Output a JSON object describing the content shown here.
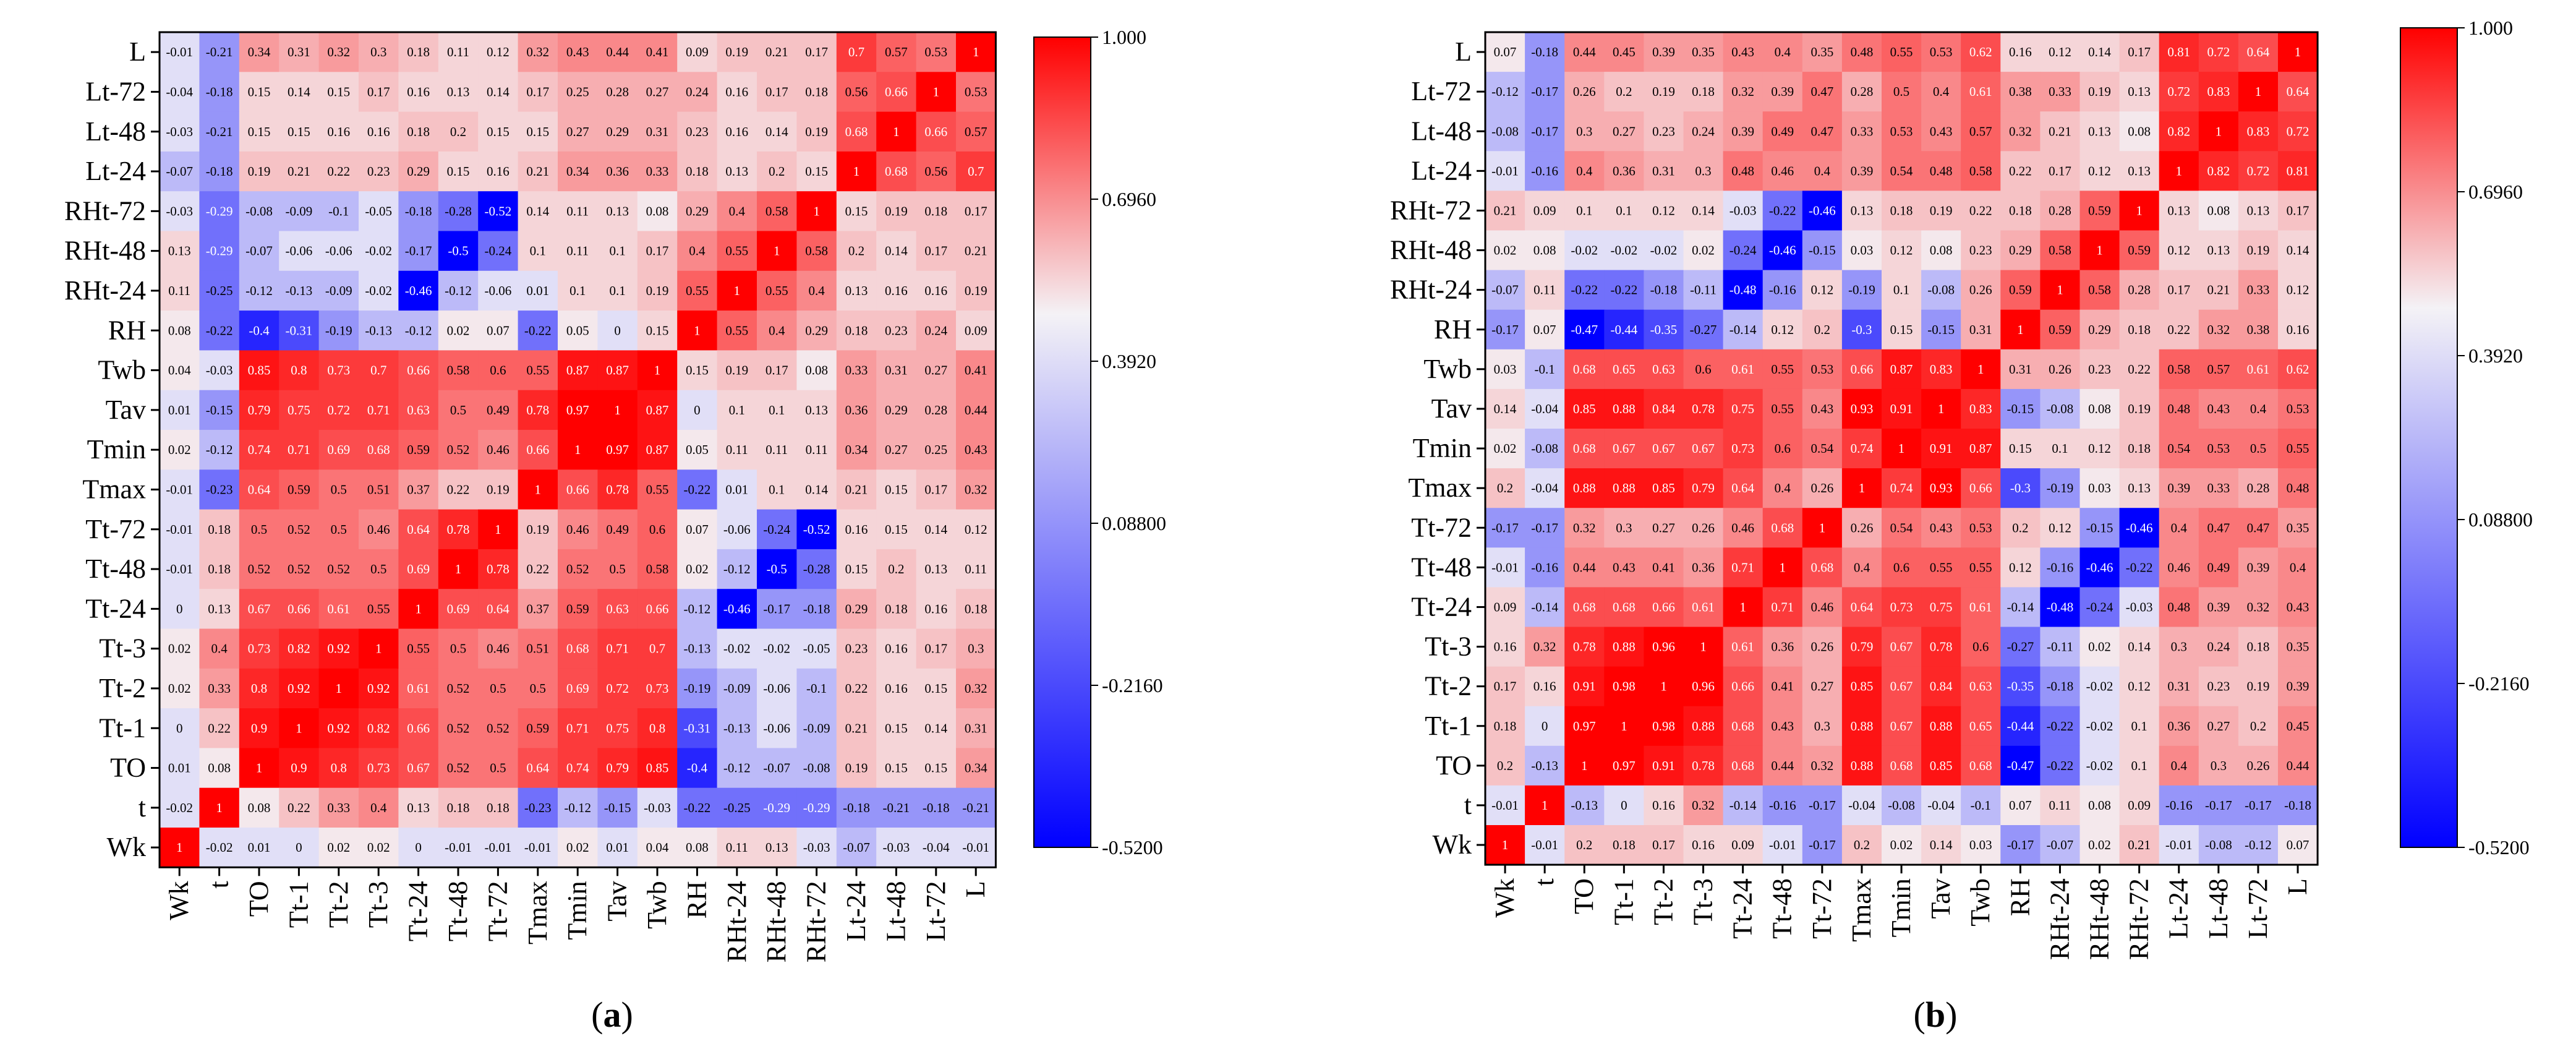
{
  "figure": {
    "colorbar_ticks": [
      "1.000",
      "0.6960",
      "0.3920",
      "0.08800",
      "-0.2160",
      "-0.5200"
    ],
    "color_min": -0.52,
    "color_max": 1.0,
    "colors": {
      "negative": "#0000ff",
      "middle": "#f4f2f6",
      "positive": "#ff0000"
    }
  },
  "chart_data": [
    {
      "type": "heatmap",
      "panel_label": "(a)",
      "variables": [
        "Wk",
        "t",
        "TO",
        "Tt-1",
        "Tt-2",
        "Tt-3",
        "Tt-24",
        "Tt-48",
        "Tt-72",
        "Tmax",
        "Tmin",
        "Tav",
        "Twb",
        "RH",
        "RHt-24",
        "RHt-48",
        "RHt-72",
        "Lt-24",
        "Lt-48",
        "Lt-72",
        "L"
      ],
      "rows": [
        "L",
        "Lt-72",
        "Lt-48",
        "Lt-24",
        "RHt-72",
        "RHt-48",
        "RHt-24",
        "RH",
        "Twb",
        "Tav",
        "Tmin",
        "Tmax",
        "Tt-72",
        "Tt-48",
        "Tt-24",
        "Tt-3",
        "Tt-2",
        "Tt-1",
        "TO",
        "t",
        "Wk"
      ],
      "columns": [
        "Wk",
        "t",
        "TO",
        "Tt-1",
        "Tt-2",
        "Tt-3",
        "Tt-24",
        "Tt-48",
        "Tt-72",
        "Tmax",
        "Tmin",
        "Tav",
        "Twb",
        "RH",
        "RHt-24",
        "RHt-48",
        "RHt-72",
        "Lt-24",
        "Lt-48",
        "Lt-72",
        "L"
      ],
      "values": [
        [
          -0.01,
          -0.21,
          0.34,
          0.31,
          0.32,
          0.3,
          0.18,
          0.11,
          0.12,
          0.32,
          0.43,
          0.44,
          0.41,
          0.09,
          0.19,
          0.21,
          0.17,
          0.7,
          0.57,
          0.53,
          1
        ],
        [
          -0.04,
          -0.18,
          0.15,
          0.14,
          0.15,
          0.17,
          0.16,
          0.13,
          0.14,
          0.17,
          0.25,
          0.28,
          0.27,
          0.24,
          0.16,
          0.17,
          0.18,
          0.56,
          0.66,
          1,
          0.53
        ],
        [
          -0.03,
          -0.21,
          0.15,
          0.15,
          0.16,
          0.16,
          0.18,
          0.2,
          0.15,
          0.15,
          0.27,
          0.29,
          0.31,
          0.23,
          0.16,
          0.14,
          0.19,
          0.68,
          1,
          0.66,
          0.57
        ],
        [
          -0.07,
          -0.18,
          0.19,
          0.21,
          0.22,
          0.23,
          0.29,
          0.15,
          0.16,
          0.21,
          0.34,
          0.36,
          0.33,
          0.18,
          0.13,
          0.2,
          0.15,
          1,
          0.68,
          0.56,
          0.7
        ],
        [
          -0.03,
          -0.29,
          -0.08,
          -0.09,
          -0.1,
          -0.05,
          -0.18,
          -0.28,
          -0.52,
          0.14,
          0.11,
          0.13,
          0.08,
          0.29,
          0.4,
          0.58,
          1,
          0.15,
          0.19,
          0.18,
          0.17
        ],
        [
          0.13,
          -0.29,
          -0.07,
          -0.06,
          -0.06,
          -0.02,
          -0.17,
          -0.5,
          -0.24,
          0.1,
          0.11,
          0.1,
          0.17,
          0.4,
          0.55,
          1,
          0.58,
          0.2,
          0.14,
          0.17,
          0.21
        ],
        [
          0.11,
          -0.25,
          -0.12,
          -0.13,
          -0.09,
          -0.02,
          -0.46,
          -0.12,
          -0.06,
          0.01,
          0.1,
          0.1,
          0.19,
          0.55,
          1,
          0.55,
          0.4,
          0.13,
          0.16,
          0.16,
          0.19
        ],
        [
          0.08,
          -0.22,
          -0.4,
          -0.31,
          -0.19,
          -0.13,
          -0.12,
          0.02,
          0.07,
          -0.22,
          0.05,
          0,
          0.15,
          1,
          0.55,
          0.4,
          0.29,
          0.18,
          0.23,
          0.24,
          0.09
        ],
        [
          0.04,
          -0.03,
          0.85,
          0.8,
          0.73,
          0.7,
          0.66,
          0.58,
          0.6,
          0.55,
          0.87,
          0.87,
          1,
          0.15,
          0.19,
          0.17,
          0.08,
          0.33,
          0.31,
          0.27,
          0.41
        ],
        [
          0.01,
          -0.15,
          0.79,
          0.75,
          0.72,
          0.71,
          0.63,
          0.5,
          0.49,
          0.78,
          0.97,
          1,
          0.87,
          0,
          0.1,
          0.1,
          0.13,
          0.36,
          0.29,
          0.28,
          0.44
        ],
        [
          0.02,
          -0.12,
          0.74,
          0.71,
          0.69,
          0.68,
          0.59,
          0.52,
          0.46,
          0.66,
          1,
          0.97,
          0.87,
          0.05,
          0.11,
          0.11,
          0.11,
          0.34,
          0.27,
          0.25,
          0.43
        ],
        [
          -0.01,
          -0.23,
          0.64,
          0.59,
          0.5,
          0.51,
          0.37,
          0.22,
          0.19,
          1,
          0.66,
          0.78,
          0.55,
          -0.22,
          0.01,
          0.1,
          0.14,
          0.21,
          0.15,
          0.17,
          0.32
        ],
        [
          -0.01,
          0.18,
          0.5,
          0.52,
          0.5,
          0.46,
          0.64,
          0.78,
          1,
          0.19,
          0.46,
          0.49,
          0.6,
          0.07,
          -0.06,
          -0.24,
          -0.52,
          0.16,
          0.15,
          0.14,
          0.12
        ],
        [
          -0.01,
          0.18,
          0.52,
          0.52,
          0.52,
          0.5,
          0.69,
          1,
          0.78,
          0.22,
          0.52,
          0.5,
          0.58,
          0.02,
          -0.12,
          -0.5,
          -0.28,
          0.15,
          0.2,
          0.13,
          0.11
        ],
        [
          0,
          0.13,
          0.67,
          0.66,
          0.61,
          0.55,
          1,
          0.69,
          0.64,
          0.37,
          0.59,
          0.63,
          0.66,
          -0.12,
          -0.46,
          -0.17,
          -0.18,
          0.29,
          0.18,
          0.16,
          0.18
        ],
        [
          0.02,
          0.4,
          0.73,
          0.82,
          0.92,
          1,
          0.55,
          0.5,
          0.46,
          0.51,
          0.68,
          0.71,
          0.7,
          -0.13,
          -0.02,
          -0.02,
          -0.05,
          0.23,
          0.16,
          0.17,
          0.3
        ],
        [
          0.02,
          0.33,
          0.8,
          0.92,
          1,
          0.92,
          0.61,
          0.52,
          0.5,
          0.5,
          0.69,
          0.72,
          0.73,
          -0.19,
          -0.09,
          -0.06,
          -0.1,
          0.22,
          0.16,
          0.15,
          0.32
        ],
        [
          0,
          0.22,
          0.9,
          1,
          0.92,
          0.82,
          0.66,
          0.52,
          0.52,
          0.59,
          0.71,
          0.75,
          0.8,
          -0.31,
          -0.13,
          -0.06,
          -0.09,
          0.21,
          0.15,
          0.14,
          0.31
        ],
        [
          0.01,
          0.08,
          1,
          0.9,
          0.8,
          0.73,
          0.67,
          0.52,
          0.5,
          0.64,
          0.74,
          0.79,
          0.85,
          -0.4,
          -0.12,
          -0.07,
          -0.08,
          0.19,
          0.15,
          0.15,
          0.34
        ],
        [
          -0.02,
          1,
          0.08,
          0.22,
          0.33,
          0.4,
          0.13,
          0.18,
          0.18,
          -0.23,
          -0.12,
          -0.15,
          -0.03,
          -0.22,
          -0.25,
          -0.29,
          -0.29,
          -0.18,
          -0.21,
          -0.18,
          -0.21
        ],
        [
          1,
          -0.02,
          0.01,
          0,
          0.02,
          0.02,
          0,
          -0.01,
          -0.01,
          -0.01,
          0.02,
          0.01,
          0.04,
          0.08,
          0.11,
          0.13,
          -0.03,
          -0.07,
          -0.03,
          -0.04,
          -0.01
        ]
      ]
    },
    {
      "type": "heatmap",
      "panel_label": "(b)",
      "variables": [
        "Wk",
        "t",
        "TO",
        "Tt-1",
        "Tt-2",
        "Tt-3",
        "Tt-24",
        "Tt-48",
        "Tt-72",
        "Tmax",
        "Tmin",
        "Tav",
        "Twb",
        "RH",
        "RHt-24",
        "RHt-48",
        "RHt-72",
        "Lt-24",
        "Lt-48",
        "Lt-72",
        "L"
      ],
      "rows": [
        "L",
        "Lt-72",
        "Lt-48",
        "Lt-24",
        "RHt-72",
        "RHt-48",
        "RHt-24",
        "RH",
        "Twb",
        "Tav",
        "Tmin",
        "Tmax",
        "Tt-72",
        "Tt-48",
        "Tt-24",
        "Tt-3",
        "Tt-2",
        "Tt-1",
        "TO",
        "t",
        "Wk"
      ],
      "columns": [
        "Wk",
        "t",
        "TO",
        "Tt-1",
        "Tt-2",
        "Tt-3",
        "Tt-24",
        "Tt-48",
        "Tt-72",
        "Tmax",
        "Tmin",
        "Tav",
        "Twb",
        "RH",
        "RHt-24",
        "RHt-48",
        "RHt-72",
        "Lt-24",
        "Lt-48",
        "Lt-72",
        "L"
      ],
      "values": [
        [
          0.07,
          -0.18,
          0.44,
          0.45,
          0.39,
          0.35,
          0.43,
          0.4,
          0.35,
          0.48,
          0.55,
          0.53,
          0.62,
          0.16,
          0.12,
          0.14,
          0.17,
          0.81,
          0.72,
          0.64,
          1
        ],
        [
          -0.12,
          -0.17,
          0.26,
          0.2,
          0.19,
          0.18,
          0.32,
          0.39,
          0.47,
          0.28,
          0.5,
          0.4,
          0.61,
          0.38,
          0.33,
          0.19,
          0.13,
          0.72,
          0.83,
          1,
          0.64
        ],
        [
          -0.08,
          -0.17,
          0.3,
          0.27,
          0.23,
          0.24,
          0.39,
          0.49,
          0.47,
          0.33,
          0.53,
          0.43,
          0.57,
          0.32,
          0.21,
          0.13,
          0.08,
          0.82,
          1,
          0.83,
          0.72
        ],
        [
          -0.01,
          -0.16,
          0.4,
          0.36,
          0.31,
          0.3,
          0.48,
          0.46,
          0.4,
          0.39,
          0.54,
          0.48,
          0.58,
          0.22,
          0.17,
          0.12,
          0.13,
          1,
          0.82,
          0.72,
          0.81
        ],
        [
          0.21,
          0.09,
          0.1,
          0.1,
          0.12,
          0.14,
          -0.03,
          -0.22,
          -0.46,
          0.13,
          0.18,
          0.19,
          0.22,
          0.18,
          0.28,
          0.59,
          1,
          0.13,
          0.08,
          0.13,
          0.17
        ],
        [
          0.02,
          0.08,
          -0.02,
          -0.02,
          -0.02,
          0.02,
          -0.24,
          -0.46,
          -0.15,
          0.03,
          0.12,
          0.08,
          0.23,
          0.29,
          0.58,
          1,
          0.59,
          0.12,
          0.13,
          0.19,
          0.14
        ],
        [
          -0.07,
          0.11,
          -0.22,
          -0.22,
          -0.18,
          -0.11,
          -0.48,
          -0.16,
          0.12,
          -0.19,
          0.1,
          -0.08,
          0.26,
          0.59,
          1,
          0.58,
          0.28,
          0.17,
          0.21,
          0.33,
          0.12
        ],
        [
          -0.17,
          0.07,
          -0.47,
          -0.44,
          -0.35,
          -0.27,
          -0.14,
          0.12,
          0.2,
          -0.3,
          0.15,
          -0.15,
          0.31,
          1,
          0.59,
          0.29,
          0.18,
          0.22,
          0.32,
          0.38,
          0.16
        ],
        [
          0.03,
          -0.1,
          0.68,
          0.65,
          0.63,
          0.6,
          0.61,
          0.55,
          0.53,
          0.66,
          0.87,
          0.83,
          1,
          0.31,
          0.26,
          0.23,
          0.22,
          0.58,
          0.57,
          0.61,
          0.62
        ],
        [
          0.14,
          -0.04,
          0.85,
          0.88,
          0.84,
          0.78,
          0.75,
          0.55,
          0.43,
          0.93,
          0.91,
          1,
          0.83,
          -0.15,
          -0.08,
          0.08,
          0.19,
          0.48,
          0.43,
          0.4,
          0.53
        ],
        [
          0.02,
          -0.08,
          0.68,
          0.67,
          0.67,
          0.67,
          0.73,
          0.6,
          0.54,
          0.74,
          1,
          0.91,
          0.87,
          0.15,
          0.1,
          0.12,
          0.18,
          0.54,
          0.53,
          0.5,
          0.55
        ],
        [
          0.2,
          -0.04,
          0.88,
          0.88,
          0.85,
          0.79,
          0.64,
          0.4,
          0.26,
          1,
          0.74,
          0.93,
          0.66,
          -0.3,
          -0.19,
          0.03,
          0.13,
          0.39,
          0.33,
          0.28,
          0.48
        ],
        [
          -0.17,
          -0.17,
          0.32,
          0.3,
          0.27,
          0.26,
          0.46,
          0.68,
          1,
          0.26,
          0.54,
          0.43,
          0.53,
          0.2,
          0.12,
          -0.15,
          -0.46,
          0.4,
          0.47,
          0.47,
          0.35
        ],
        [
          -0.01,
          -0.16,
          0.44,
          0.43,
          0.41,
          0.36,
          0.71,
          1,
          0.68,
          0.4,
          0.6,
          0.55,
          0.55,
          0.12,
          -0.16,
          -0.46,
          -0.22,
          0.46,
          0.49,
          0.39,
          0.4
        ],
        [
          0.09,
          -0.14,
          0.68,
          0.68,
          0.66,
          0.61,
          1,
          0.71,
          0.46,
          0.64,
          0.73,
          0.75,
          0.61,
          -0.14,
          -0.48,
          -0.24,
          -0.03,
          0.48,
          0.39,
          0.32,
          0.43
        ],
        [
          0.16,
          0.32,
          0.78,
          0.88,
          0.96,
          1,
          0.61,
          0.36,
          0.26,
          0.79,
          0.67,
          0.78,
          0.6,
          -0.27,
          -0.11,
          0.02,
          0.14,
          0.3,
          0.24,
          0.18,
          0.35
        ],
        [
          0.17,
          0.16,
          0.91,
          0.98,
          1,
          0.96,
          0.66,
          0.41,
          0.27,
          0.85,
          0.67,
          0.84,
          0.63,
          -0.35,
          -0.18,
          -0.02,
          0.12,
          0.31,
          0.23,
          0.19,
          0.39
        ],
        [
          0.18,
          0,
          0.97,
          1,
          0.98,
          0.88,
          0.68,
          0.43,
          0.3,
          0.88,
          0.67,
          0.88,
          0.65,
          -0.44,
          -0.22,
          -0.02,
          0.1,
          0.36,
          0.27,
          0.2,
          0.45
        ],
        [
          0.2,
          -0.13,
          1,
          0.97,
          0.91,
          0.78,
          0.68,
          0.44,
          0.32,
          0.88,
          0.68,
          0.85,
          0.68,
          -0.47,
          -0.22,
          -0.02,
          0.1,
          0.4,
          0.3,
          0.26,
          0.44
        ],
        [
          -0.01,
          1,
          -0.13,
          0,
          0.16,
          0.32,
          -0.14,
          -0.16,
          -0.17,
          -0.04,
          -0.08,
          -0.04,
          -0.1,
          0.07,
          0.11,
          0.08,
          0.09,
          -0.16,
          -0.17,
          -0.17,
          -0.18
        ],
        [
          1,
          -0.01,
          0.2,
          0.18,
          0.17,
          0.16,
          0.09,
          -0.01,
          -0.17,
          0.2,
          0.02,
          0.14,
          0.03,
          -0.17,
          -0.07,
          0.02,
          0.21,
          -0.01,
          -0.08,
          -0.12,
          0.07
        ]
      ]
    }
  ]
}
